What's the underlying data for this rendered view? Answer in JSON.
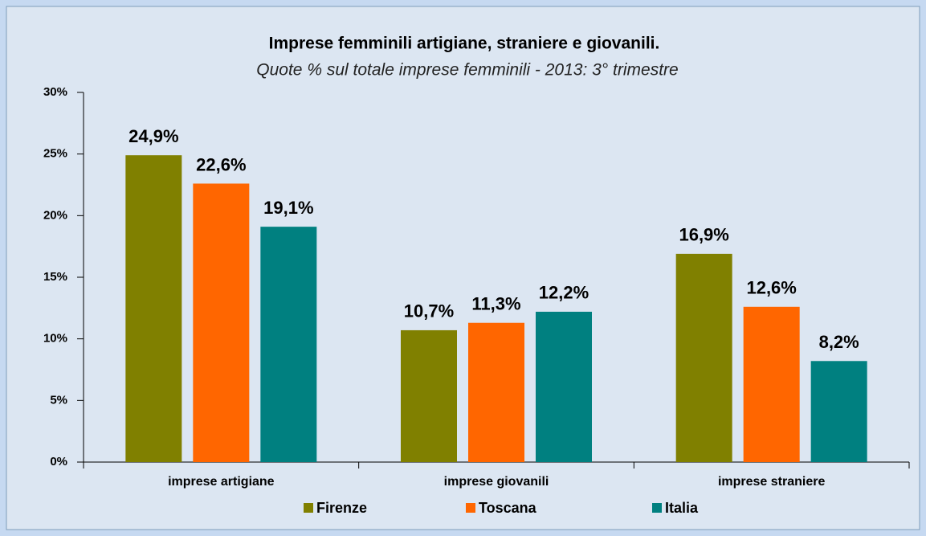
{
  "chart_data": {
    "type": "bar",
    "title": "Imprese  femminili  artigiane, straniere e giovanili.",
    "subtitle": "Quote % sul totale imprese femminili - 2013: 3° trimestre",
    "categories": [
      "imprese artigiane",
      "imprese giovanili",
      "imprese straniere"
    ],
    "series": [
      {
        "name": "Firenze",
        "color": "#808000",
        "values": [
          24.9,
          10.7,
          16.9
        ],
        "value_labels": [
          "24,9%",
          "10,7%",
          "16,9%"
        ]
      },
      {
        "name": "Toscana",
        "color": "#ff6600",
        "values": [
          22.6,
          11.3,
          12.6
        ],
        "value_labels": [
          "22,6%",
          "11,3%",
          "12,6%"
        ]
      },
      {
        "name": "Italia",
        "color": "#008080",
        "values": [
          19.1,
          12.2,
          8.2
        ],
        "value_labels": [
          "19,1%",
          "12,2%",
          "8,2%"
        ]
      }
    ],
    "ylim": [
      0,
      30
    ],
    "yticks": [
      {
        "value": 0,
        "label": "0%"
      },
      {
        "value": 5,
        "label": "5%"
      },
      {
        "value": 10,
        "label": "10%"
      },
      {
        "value": 15,
        "label": "15%"
      },
      {
        "value": 20,
        "label": "20%"
      },
      {
        "value": 25,
        "label": "25%"
      },
      {
        "value": 30,
        "label": "30%"
      }
    ],
    "legend": "bottom"
  }
}
